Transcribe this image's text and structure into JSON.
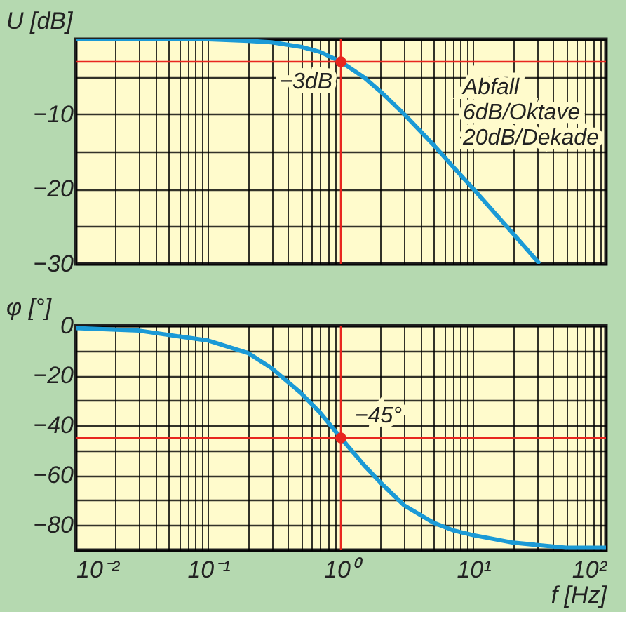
{
  "chart_data": [
    {
      "type": "line",
      "ylabel": "U [dB]",
      "xlim": [
        0.01,
        100
      ],
      "ylim": [
        -30,
        0
      ],
      "log": "x",
      "grid": true,
      "tick_labels": "y",
      "xticks": [
        {
          "value": 0.01,
          "label": null
        },
        {
          "value": 0.02,
          "label": null
        },
        {
          "value": 0.03,
          "label": null
        },
        {
          "value": 0.04,
          "label": null
        },
        {
          "value": 0.05,
          "label": null
        },
        {
          "value": 0.06,
          "label": null
        },
        {
          "value": 0.07,
          "label": null
        },
        {
          "value": 0.08,
          "label": null
        },
        {
          "value": 0.09,
          "label": null
        },
        {
          "value": 0.1,
          "label": null
        },
        {
          "value": 0.2,
          "label": null
        },
        {
          "value": 0.3,
          "label": null
        },
        {
          "value": 0.4,
          "label": null
        },
        {
          "value": 0.5,
          "label": null
        },
        {
          "value": 0.6,
          "label": null
        },
        {
          "value": 0.7,
          "label": null
        },
        {
          "value": 0.8,
          "label": null
        },
        {
          "value": 0.9,
          "label": null
        },
        {
          "value": 1,
          "label": null
        },
        {
          "value": 2,
          "label": null
        },
        {
          "value": 3,
          "label": null
        },
        {
          "value": 4,
          "label": null
        },
        {
          "value": 5,
          "label": null
        },
        {
          "value": 6,
          "label": null
        },
        {
          "value": 7,
          "label": null
        },
        {
          "value": 8,
          "label": null
        },
        {
          "value": 9,
          "label": null
        },
        {
          "value": 10,
          "label": null
        },
        {
          "value": 20,
          "label": null
        },
        {
          "value": 30,
          "label": null
        },
        {
          "value": 40,
          "label": null
        },
        {
          "value": 50,
          "label": null
        },
        {
          "value": 60,
          "label": null
        },
        {
          "value": 70,
          "label": null
        },
        {
          "value": 80,
          "label": null
        },
        {
          "value": 90,
          "label": null
        },
        {
          "value": 100,
          "label": null
        }
      ],
      "yticks": [
        {
          "value": 0,
          "label": null
        },
        {
          "value": -5,
          "label": null
        },
        {
          "value": -10,
          "label": "−10"
        },
        {
          "value": -15,
          "label": null
        },
        {
          "value": -20,
          "label": "−20"
        },
        {
          "value": -25,
          "label": null
        },
        {
          "value": -30,
          "label": "−30"
        }
      ],
      "series": [
        {
          "type": "line",
          "color": "#1b9ad6",
          "x": [
            0.01,
            0.1,
            0.2,
            0.3,
            0.5,
            0.7,
            1,
            1.5,
            2,
            3,
            5,
            7,
            10,
            20,
            31.6
          ],
          "values": [
            0,
            0,
            -0.2,
            -0.4,
            -1,
            -1.7,
            -3,
            -5.1,
            -7,
            -10,
            -14.1,
            -17,
            -20,
            -26,
            -30
          ]
        },
        {
          "type": "scatter",
          "marker": "circle",
          "color": "#e8261f",
          "x": [
            1
          ],
          "values": [
            -3
          ]
        }
      ],
      "ref_lines": [
        {
          "axis": "x",
          "value": 1,
          "color": "#e8261f"
        },
        {
          "axis": "y",
          "value": -3,
          "color": "#e8261f"
        }
      ],
      "annotations": [
        {
          "text": "−3dB",
          "x": 1,
          "y": -3
        },
        "Abfall\n6dB/Oktave\n20dB/Dekade"
      ]
    },
    {
      "type": "line",
      "ylabel": "φ [°]",
      "xlabel": "f [Hz]",
      "xlim": [
        0.01,
        100
      ],
      "ylim": [
        -90,
        0
      ],
      "log": "x",
      "grid": true,
      "xticks": [
        {
          "value": 0.01,
          "label": "10⁻²"
        },
        {
          "value": 0.02,
          "label": null
        },
        {
          "value": 0.03,
          "label": null
        },
        {
          "value": 0.04,
          "label": null
        },
        {
          "value": 0.05,
          "label": null
        },
        {
          "value": 0.06,
          "label": null
        },
        {
          "value": 0.07,
          "label": null
        },
        {
          "value": 0.08,
          "label": null
        },
        {
          "value": 0.09,
          "label": null
        },
        {
          "value": 0.1,
          "label": "10⁻¹"
        },
        {
          "value": 0.2,
          "label": null
        },
        {
          "value": 0.3,
          "label": null
        },
        {
          "value": 0.4,
          "label": null
        },
        {
          "value": 0.5,
          "label": null
        },
        {
          "value": 0.6,
          "label": null
        },
        {
          "value": 0.7,
          "label": null
        },
        {
          "value": 0.8,
          "label": null
        },
        {
          "value": 0.9,
          "label": null
        },
        {
          "value": 1,
          "label": "10⁰"
        },
        {
          "value": 2,
          "label": null
        },
        {
          "value": 3,
          "label": null
        },
        {
          "value": 4,
          "label": null
        },
        {
          "value": 5,
          "label": null
        },
        {
          "value": 6,
          "label": null
        },
        {
          "value": 7,
          "label": null
        },
        {
          "value": 8,
          "label": null
        },
        {
          "value": 9,
          "label": null
        },
        {
          "value": 10,
          "label": "10¹"
        },
        {
          "value": 20,
          "label": null
        },
        {
          "value": 30,
          "label": null
        },
        {
          "value": 40,
          "label": null
        },
        {
          "value": 50,
          "label": null
        },
        {
          "value": 60,
          "label": null
        },
        {
          "value": 70,
          "label": null
        },
        {
          "value": 80,
          "label": null
        },
        {
          "value": 90,
          "label": null
        },
        {
          "value": 100,
          "label": "10²"
        }
      ],
      "yticks": [
        {
          "value": 0,
          "label": "0"
        },
        {
          "value": -10,
          "label": null
        },
        {
          "value": -20,
          "label": "−20"
        },
        {
          "value": -30,
          "label": null
        },
        {
          "value": -40,
          "label": "−40"
        },
        {
          "value": -50,
          "label": null
        },
        {
          "value": -60,
          "label": "−60"
        },
        {
          "value": -70,
          "label": null
        },
        {
          "value": -80,
          "label": "−80"
        },
        {
          "value": -90,
          "label": null
        }
      ],
      "series": [
        {
          "type": "line",
          "color": "#1b9ad6",
          "x": [
            0.01,
            0.03,
            0.1,
            0.2,
            0.3,
            0.5,
            0.7,
            1,
            1.5,
            2,
            3,
            5,
            7,
            10,
            20,
            50,
            100
          ],
          "values": [
            -1,
            -2,
            -6,
            -11,
            -17,
            -27,
            -35,
            -45,
            -56,
            -63,
            -72,
            -79,
            -82,
            -84,
            -87,
            -89,
            -89
          ]
        },
        {
          "type": "scatter",
          "marker": "circle",
          "color": "#e8261f",
          "x": [
            1
          ],
          "values": [
            -45
          ]
        }
      ],
      "ref_lines": [
        {
          "axis": "x",
          "value": 1,
          "color": "#e8261f"
        },
        {
          "axis": "y",
          "value": -45,
          "color": "#e8261f"
        }
      ],
      "annotations": [
        {
          "text": "−45°",
          "x": 1,
          "y": -45
        }
      ]
    }
  ]
}
